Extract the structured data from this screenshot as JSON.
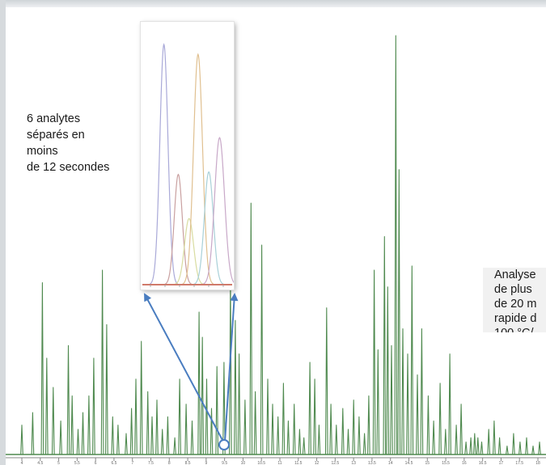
{
  "annotations": {
    "left": [
      "6 analytes",
      "séparés en",
      "moins",
      "de 12 secondes"
    ],
    "right": [
      "Analyse",
      "de plus",
      "de 20 m",
      "rapide d",
      "100 °C/"
    ]
  },
  "colors": {
    "main_trace": "#4f8a4f",
    "arrow": "#4a7dc0",
    "inset_peaks": [
      "#a9a9d8",
      "#c9a0a0",
      "#d8dca0",
      "#e0c090",
      "#a8d0d8",
      "#c8a8c8"
    ]
  },
  "chart_data": [
    {
      "type": "line",
      "description_role": "main chromatogram",
      "title": "",
      "xlabel": "",
      "ylabel": "",
      "xlim": [
        0,
        100
      ],
      "ylim": [
        0,
        100
      ],
      "grid": false,
      "peaks": [
        [
          3.0,
          7
        ],
        [
          5.0,
          10
        ],
        [
          6.8,
          41
        ],
        [
          7.6,
          23
        ],
        [
          8.8,
          16
        ],
        [
          10.2,
          8
        ],
        [
          11.6,
          26
        ],
        [
          12.3,
          14
        ],
        [
          13.4,
          6
        ],
        [
          14.3,
          10
        ],
        [
          15.4,
          14
        ],
        [
          16.3,
          23
        ],
        [
          17.9,
          44
        ],
        [
          18.7,
          31
        ],
        [
          19.8,
          9
        ],
        [
          20.8,
          7
        ],
        [
          22.3,
          5
        ],
        [
          23.3,
          11
        ],
        [
          24.1,
          18
        ],
        [
          25.1,
          27
        ],
        [
          26.3,
          15
        ],
        [
          27.1,
          9
        ],
        [
          28.0,
          13
        ],
        [
          29.0,
          6
        ],
        [
          30.0,
          9
        ],
        [
          31.3,
          4
        ],
        [
          32.2,
          18
        ],
        [
          33.4,
          12
        ],
        [
          34.5,
          8
        ],
        [
          35.8,
          34
        ],
        [
          36.4,
          28
        ],
        [
          37.2,
          18
        ],
        [
          38.1,
          11
        ],
        [
          39.1,
          21
        ],
        [
          40.4,
          22
        ],
        [
          41.6,
          42
        ],
        [
          42.5,
          32
        ],
        [
          43.2,
          24
        ],
        [
          44.3,
          13
        ],
        [
          45.4,
          60
        ],
        [
          46.2,
          15
        ],
        [
          47.4,
          50
        ],
        [
          48.5,
          18
        ],
        [
          49.4,
          12
        ],
        [
          50.4,
          9
        ],
        [
          51.4,
          17
        ],
        [
          52.3,
          8
        ],
        [
          53.4,
          12
        ],
        [
          54.4,
          6
        ],
        [
          55.2,
          4
        ],
        [
          56.3,
          22
        ],
        [
          57.2,
          18
        ],
        [
          58.0,
          7
        ],
        [
          59.4,
          35
        ],
        [
          60.2,
          12
        ],
        [
          61.2,
          7
        ],
        [
          62.4,
          11
        ],
        [
          63.4,
          6
        ],
        [
          64.4,
          13
        ],
        [
          65.4,
          9
        ],
        [
          66.4,
          5
        ],
        [
          67.2,
          14
        ],
        [
          68.2,
          44
        ],
        [
          68.9,
          25
        ],
        [
          70.1,
          52
        ],
        [
          70.7,
          40
        ],
        [
          71.4,
          26
        ],
        [
          72.2,
          100
        ],
        [
          72.8,
          68
        ],
        [
          73.5,
          30
        ],
        [
          74.4,
          24
        ],
        [
          75.2,
          45
        ],
        [
          76.2,
          19
        ],
        [
          77.0,
          30
        ],
        [
          78.2,
          14
        ],
        [
          79.2,
          8
        ],
        [
          80.4,
          17
        ],
        [
          81.4,
          6
        ],
        [
          82.2,
          24
        ],
        [
          83.4,
          7
        ],
        [
          84.3,
          12
        ],
        [
          85.2,
          3
        ],
        [
          86.1,
          4
        ],
        [
          86.8,
          5
        ],
        [
          87.4,
          4
        ],
        [
          88.1,
          3
        ],
        [
          89.4,
          6
        ],
        [
          90.4,
          8
        ],
        [
          91.4,
          4
        ],
        [
          92.8,
          2
        ],
        [
          94.0,
          5
        ],
        [
          95.2,
          3
        ],
        [
          96.4,
          4
        ],
        [
          97.6,
          2
        ],
        [
          98.8,
          3
        ]
      ],
      "x_tick_labels": [
        "4",
        "4.5",
        "5",
        "5.5",
        "6",
        "6.5",
        "7",
        "7.5",
        "8",
        "8.5",
        "9",
        "9.5",
        "10",
        "10.5",
        "11",
        "11.5",
        "12",
        "12.5",
        "13",
        "13.5",
        "14",
        "14.5",
        "15",
        "15.5",
        "16",
        "16.5",
        "17",
        "17.5",
        "18"
      ]
    },
    {
      "type": "line",
      "description_role": "inset zoom",
      "title": "",
      "xlim": [
        0,
        100
      ],
      "ylim": [
        0,
        100
      ],
      "series": [
        {
          "center": 24,
          "height": 98,
          "width": 4.5
        },
        {
          "center": 40,
          "height": 45,
          "width": 4.5
        },
        {
          "center": 52,
          "height": 27,
          "width": 5.0
        },
        {
          "center": 62,
          "height": 94,
          "width": 5.0
        },
        {
          "center": 74,
          "height": 46,
          "width": 5.0
        },
        {
          "center": 86,
          "height": 60,
          "width": 5.5
        }
      ],
      "x_tick_labels": [
        "",
        "",
        "",
        "",
        "",
        ""
      ]
    }
  ]
}
